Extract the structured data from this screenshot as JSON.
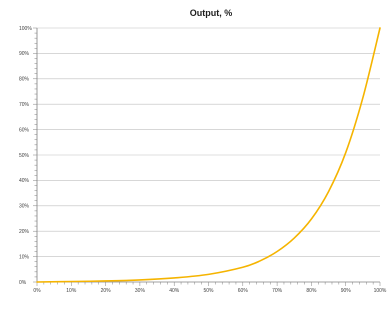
{
  "chart_data": {
    "type": "line",
    "title": "Output, %",
    "xlabel": "",
    "ylabel": "",
    "xlim": [
      0,
      100
    ],
    "ylim": [
      0,
      100
    ],
    "x_ticks": [
      "0%",
      "10%",
      "20%",
      "30%",
      "40%",
      "50%",
      "60%",
      "70%",
      "80%",
      "90%",
      "100%"
    ],
    "y_ticks": [
      "0%",
      "10%",
      "20%",
      "30%",
      "40%",
      "50%",
      "60%",
      "70%",
      "80%",
      "90%",
      "100%"
    ],
    "grid": "horizontal",
    "legend": "none",
    "series": [
      {
        "color": "#f5b400",
        "x": [
          0,
          10,
          20,
          30,
          40,
          50,
          60,
          65,
          70,
          75,
          80,
          85,
          90,
          95,
          100
        ],
        "y": [
          0,
          0.2,
          0.4,
          0.8,
          1.6,
          3.0,
          5.8,
          8.3,
          12.0,
          17.3,
          24.8,
          35.6,
          50.9,
          72.5,
          100
        ]
      }
    ]
  }
}
